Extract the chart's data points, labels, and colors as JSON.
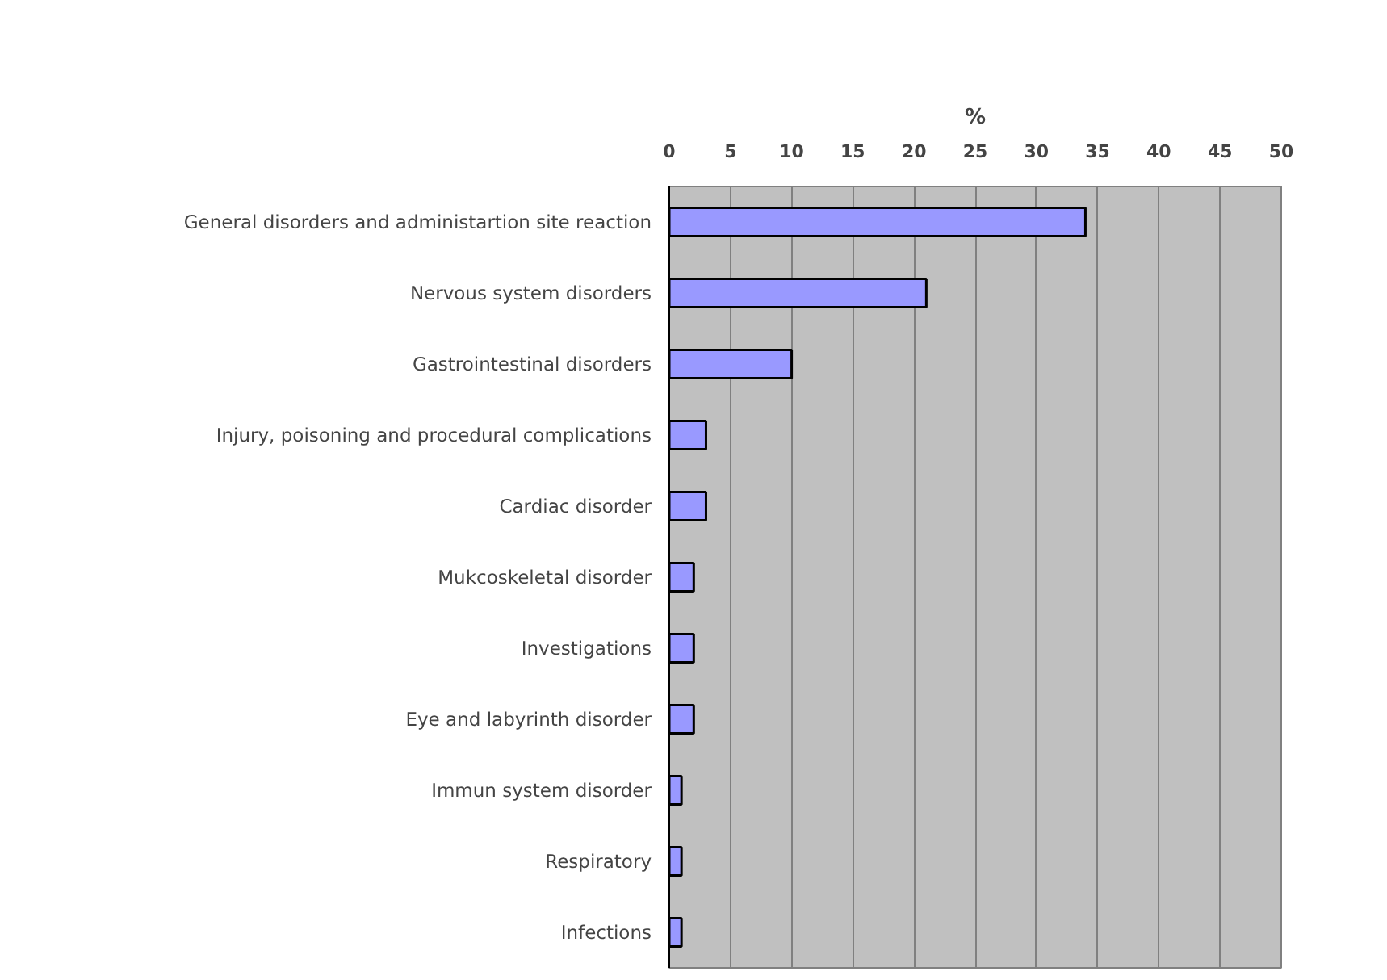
{
  "chart_data": {
    "type": "bar",
    "orientation": "horizontal",
    "xlabel": "%",
    "categories": [
      "General disorders and administartion site reaction",
      "Nervous system disorders",
      "Gastrointestinal disorders",
      "Injury, poisoning and procedural complications",
      "Cardiac disorder",
      "Mukcoskeletal disorder",
      "Investigations",
      "Eye and labyrinth disorder",
      "Immun system disorder",
      "Respiratory",
      "Infections"
    ],
    "values": [
      34,
      21,
      10,
      3,
      3,
      2,
      2,
      2,
      1,
      1,
      1
    ],
    "color": "#9999ff",
    "xlim": [
      0,
      50
    ],
    "xticks": [
      0,
      5,
      10,
      15,
      20,
      25,
      30,
      35,
      40,
      45,
      50
    ],
    "grid": "x"
  }
}
